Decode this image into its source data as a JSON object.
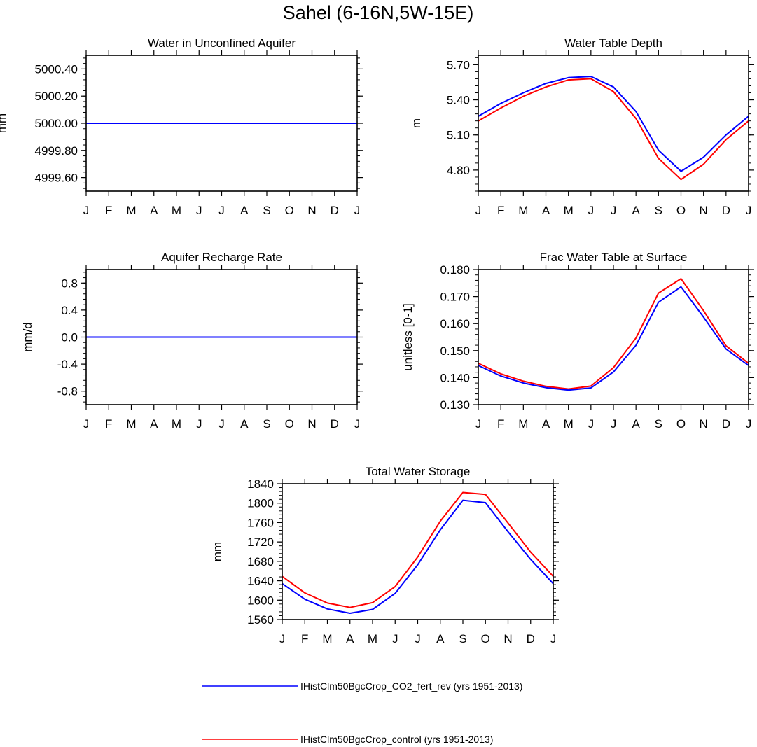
{
  "figure": {
    "title": "Sahel (6-16N,5W-15E)"
  },
  "months": [
    "J",
    "F",
    "M",
    "A",
    "M",
    "J",
    "J",
    "A",
    "S",
    "O",
    "N",
    "D",
    "J"
  ],
  "legend": [
    {
      "label": "IHistClm50BgcCrop_CO2_fert_rev (yrs 1951-2013)",
      "color": "#0000ff"
    },
    {
      "label": "IHistClm50BgcCrop_control (yrs 1951-2013)",
      "color": "#ff0000"
    }
  ],
  "chart_data": [
    {
      "type": "line",
      "title": "Water in Unconfined Aquifer",
      "ylabel": "mm",
      "ylim": [
        4999.5,
        5000.5
      ],
      "yticks": [
        4999.6,
        4999.8,
        5000.0,
        5000.2,
        5000.4
      ],
      "ytick_labels": [
        "4999.60",
        "4999.80",
        "5000.00",
        "5000.20",
        "5000.40"
      ],
      "y_minor_step": 0.04,
      "x": [
        0,
        1,
        2,
        3,
        4,
        5,
        6,
        7,
        8,
        9,
        10,
        11,
        12
      ],
      "series": [
        {
          "color": "#ff0000",
          "values": [
            5000,
            5000,
            5000,
            5000,
            5000,
            5000,
            5000,
            5000,
            5000,
            5000,
            5000,
            5000,
            5000
          ]
        },
        {
          "color": "#0000ff",
          "values": [
            5000,
            5000,
            5000,
            5000,
            5000,
            5000,
            5000,
            5000,
            5000,
            5000,
            5000,
            5000,
            5000
          ]
        }
      ]
    },
    {
      "type": "line",
      "title": "Water Table Depth",
      "ylabel": "m",
      "ylim": [
        4.62,
        5.78
      ],
      "yticks": [
        4.8,
        5.1,
        5.4,
        5.7
      ],
      "ytick_labels": [
        "4.80",
        "5.10",
        "5.40",
        "5.70"
      ],
      "y_minor_step": 0.06,
      "x": [
        0,
        1,
        2,
        3,
        4,
        5,
        6,
        7,
        8,
        9,
        10,
        11,
        12
      ],
      "series": [
        {
          "color": "#ff0000",
          "values": [
            5.22,
            5.33,
            5.43,
            5.51,
            5.57,
            5.58,
            5.47,
            5.24,
            4.9,
            4.72,
            4.85,
            5.06,
            5.22
          ]
        },
        {
          "color": "#0000ff",
          "values": [
            5.26,
            5.37,
            5.46,
            5.54,
            5.59,
            5.6,
            5.51,
            5.3,
            4.97,
            4.79,
            4.91,
            5.1,
            5.26
          ]
        }
      ]
    },
    {
      "type": "line",
      "title": "Aquifer Recharge Rate",
      "ylabel": "mm/d",
      "ylim": [
        -1.0,
        1.0
      ],
      "yticks": [
        -0.8,
        -0.4,
        0.0,
        0.4,
        0.8
      ],
      "ytick_labels": [
        "-0.8",
        "-0.4",
        "0.0",
        "0.4",
        "0.8"
      ],
      "y_minor_step": 0.08,
      "x": [
        0,
        1,
        2,
        3,
        4,
        5,
        6,
        7,
        8,
        9,
        10,
        11,
        12
      ],
      "series": [
        {
          "color": "#ff0000",
          "values": [
            0,
            0,
            0,
            0,
            0,
            0,
            0,
            0,
            0,
            0,
            0,
            0,
            0
          ]
        },
        {
          "color": "#0000ff",
          "values": [
            0,
            0,
            0,
            0,
            0,
            0,
            0,
            0,
            0,
            0,
            0,
            0,
            0
          ]
        }
      ]
    },
    {
      "type": "line",
      "title": "Frac Water Table at Surface",
      "ylabel": "unitless [0-1]",
      "ylim": [
        0.13,
        0.18
      ],
      "yticks": [
        0.13,
        0.14,
        0.15,
        0.16,
        0.17,
        0.18
      ],
      "ytick_labels": [
        "0.130",
        "0.140",
        "0.150",
        "0.160",
        "0.170",
        "0.180"
      ],
      "y_minor_step": 0.002,
      "x": [
        0,
        1,
        2,
        3,
        4,
        5,
        6,
        7,
        8,
        9,
        10,
        11,
        12
      ],
      "series": [
        {
          "color": "#ff0000",
          "values": [
            0.1453,
            0.1414,
            0.1387,
            0.1368,
            0.1358,
            0.1369,
            0.1437,
            0.1547,
            0.1713,
            0.1766,
            0.1648,
            0.1518,
            0.1453
          ]
        },
        {
          "color": "#0000ff",
          "values": [
            0.1445,
            0.1406,
            0.138,
            0.1363,
            0.1354,
            0.1362,
            0.1421,
            0.152,
            0.1679,
            0.1736,
            0.1624,
            0.1506,
            0.1445
          ]
        }
      ]
    },
    {
      "type": "line",
      "title": "Total Water Storage",
      "ylabel": "mm",
      "ylim": [
        1560,
        1840
      ],
      "yticks": [
        1560,
        1600,
        1640,
        1680,
        1720,
        1760,
        1800,
        1840
      ],
      "ytick_labels": [
        "1560",
        "1600",
        "1640",
        "1680",
        "1720",
        "1760",
        "1800",
        "1840"
      ],
      "y_minor_step": 8,
      "x": [
        0,
        1,
        2,
        3,
        4,
        5,
        6,
        7,
        8,
        9,
        10,
        11,
        12
      ],
      "series": [
        {
          "color": "#ff0000",
          "values": [
            1649,
            1615,
            1594,
            1585,
            1595,
            1628,
            1689,
            1763,
            1822,
            1818,
            1759,
            1699,
            1649
          ]
        },
        {
          "color": "#0000ff",
          "values": [
            1634,
            1602,
            1582,
            1573,
            1581,
            1614,
            1673,
            1745,
            1806,
            1801,
            1741,
            1684,
            1634
          ]
        }
      ]
    }
  ]
}
